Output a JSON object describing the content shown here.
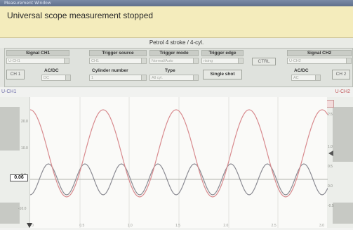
{
  "window": {
    "title": "Measurement Window"
  },
  "status": {
    "message": "Universal scope measurement stopped",
    "indicator_color": "#2e9a3a"
  },
  "info_bar": {
    "label": "Petrol 4 stroke / 4-cyl."
  },
  "controls": {
    "signal_ch1": {
      "label": "Signal CH1",
      "value": "U-CH1",
      "button": "CH 1"
    },
    "acdc_ch1": {
      "label": "AC/DC",
      "value": "DC"
    },
    "trigger_source": {
      "label": "Trigger source",
      "value": "CH1"
    },
    "trigger_mode": {
      "label": "Trigger mode",
      "value": "Normal/Auto"
    },
    "trigger_edge": {
      "label": "Trigger edge",
      "value": "rising"
    },
    "cylinder_number": {
      "label": "Cylinder number",
      "value": "1"
    },
    "type": {
      "label": "Type",
      "value": "All cyl."
    },
    "single_shot": {
      "label": "Single shot"
    },
    "ctrl_button": {
      "label": "CTRL"
    },
    "signal_ch2": {
      "label": "Signal CH2",
      "value": "U-CH2",
      "button": "CH 2"
    },
    "acdc_ch2": {
      "label": "AC/DC",
      "value": "AC"
    }
  },
  "scope": {
    "ch1_label": "U-CH1",
    "ch2_label": "U-CH2",
    "marker_value": "0.06",
    "ch1_color": "#8a8a92",
    "ch2_color": "#d88a8e",
    "ch1_scale": [
      "20.0",
      "10.0",
      "0.0",
      "-10.0"
    ],
    "ch2_scale": [
      "2.5",
      "1.0",
      "0.5",
      "0.0",
      "-0.5"
    ],
    "time_ticks": [
      "0",
      "0.5",
      "1.0",
      "1.5",
      "2.0",
      "2.5",
      "3.0"
    ]
  }
}
